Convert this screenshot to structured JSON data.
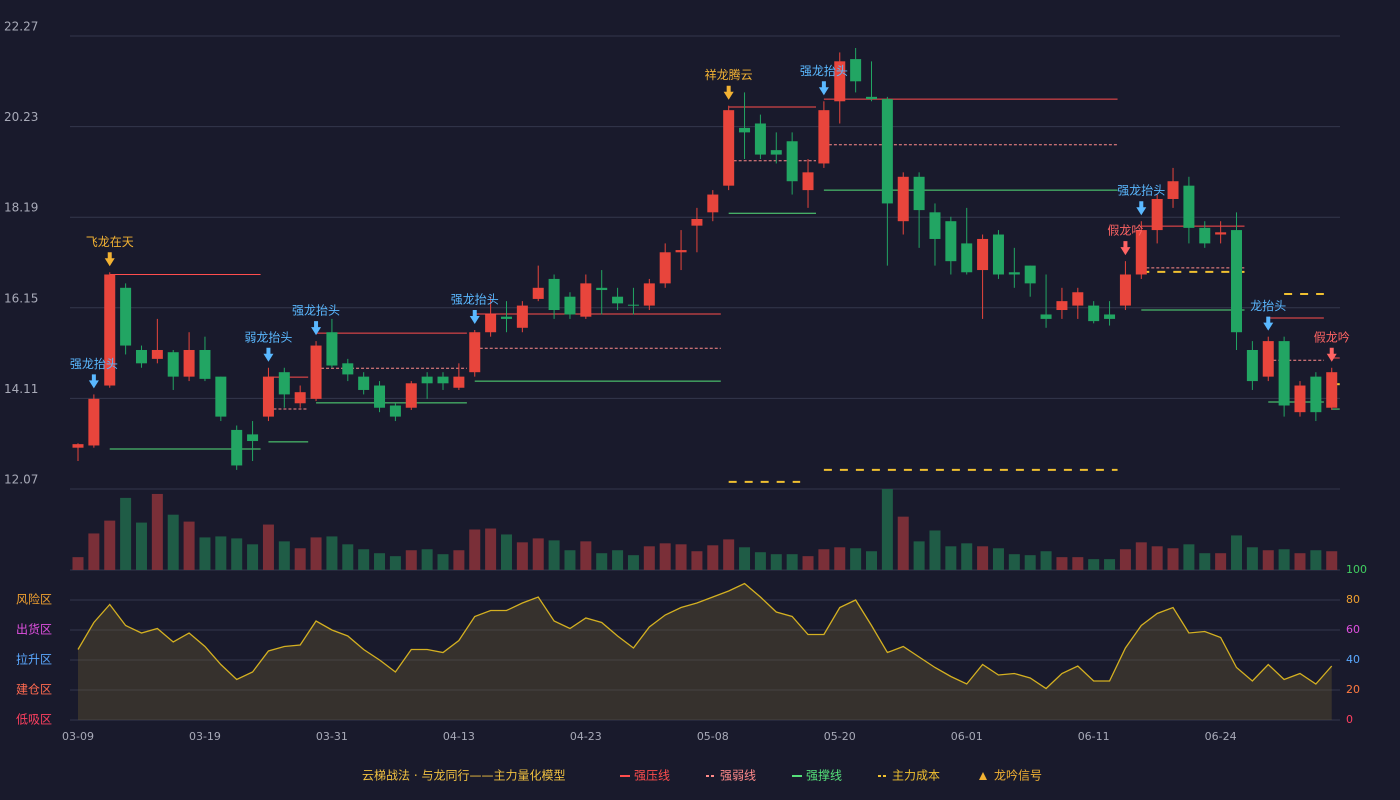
{
  "chart_data": {
    "type": "candlestick",
    "up_color": "#e8453c",
    "down_color": "#22a563",
    "ylim": [
      12.07,
      22.27
    ],
    "yticks": [
      12.07,
      14.11,
      16.15,
      18.19,
      20.23,
      22.27
    ],
    "grid": true,
    "categories": [
      "03-09",
      null,
      null,
      null,
      null,
      null,
      null,
      null,
      "03-19",
      null,
      null,
      null,
      null,
      null,
      null,
      null,
      "03-31",
      null,
      null,
      null,
      null,
      null,
      null,
      null,
      "04-13",
      null,
      null,
      null,
      null,
      null,
      null,
      null,
      "04-23",
      null,
      null,
      null,
      null,
      null,
      null,
      null,
      "05-08",
      null,
      null,
      null,
      null,
      null,
      null,
      null,
      "05-20",
      null,
      null,
      null,
      null,
      null,
      null,
      null,
      "06-01",
      null,
      null,
      null,
      null,
      null,
      null,
      null,
      "06-11",
      null,
      null,
      null,
      null,
      null,
      null,
      null,
      "06-24",
      null,
      null,
      null,
      null,
      null,
      null,
      null
    ],
    "ohlc": [
      [
        13.0,
        13.1,
        12.7,
        13.08
      ],
      [
        13.05,
        14.2,
        13.0,
        14.1
      ],
      [
        14.4,
        16.95,
        14.35,
        16.9
      ],
      [
        16.6,
        16.7,
        15.1,
        15.3
      ],
      [
        15.2,
        15.3,
        14.8,
        14.9
      ],
      [
        15.0,
        15.9,
        14.9,
        15.2
      ],
      [
        15.15,
        15.2,
        14.3,
        14.6
      ],
      [
        14.6,
        15.6,
        14.5,
        15.2
      ],
      [
        15.2,
        15.5,
        14.5,
        14.55
      ],
      [
        14.6,
        14.6,
        13.6,
        13.7
      ],
      [
        13.4,
        13.5,
        12.5,
        12.6
      ],
      [
        13.3,
        13.6,
        12.7,
        13.15
      ],
      [
        13.7,
        14.8,
        13.6,
        14.6
      ],
      [
        14.7,
        14.8,
        13.9,
        14.2
      ],
      [
        14.0,
        14.4,
        13.9,
        14.25
      ],
      [
        14.1,
        15.4,
        14.05,
        15.3
      ],
      [
        15.6,
        15.9,
        14.8,
        14.85
      ],
      [
        14.9,
        15.0,
        14.5,
        14.65
      ],
      [
        14.6,
        14.7,
        14.2,
        14.3
      ],
      [
        14.4,
        14.5,
        13.8,
        13.9
      ],
      [
        13.95,
        14.0,
        13.6,
        13.7
      ],
      [
        13.9,
        14.5,
        13.85,
        14.45
      ],
      [
        14.6,
        14.7,
        14.1,
        14.45
      ],
      [
        14.6,
        14.7,
        14.3,
        14.45
      ],
      [
        14.35,
        14.9,
        14.3,
        14.6
      ],
      [
        14.7,
        15.65,
        14.6,
        15.6
      ],
      [
        15.6,
        16.4,
        15.5,
        16.0
      ],
      [
        15.95,
        16.3,
        15.6,
        15.9
      ],
      [
        15.7,
        16.3,
        15.6,
        16.2
      ],
      [
        16.35,
        17.1,
        16.3,
        16.6
      ],
      [
        16.8,
        16.9,
        15.9,
        16.1
      ],
      [
        16.4,
        16.5,
        15.9,
        16.0
      ],
      [
        15.95,
        16.9,
        15.9,
        16.7
      ],
      [
        16.6,
        17.0,
        16.0,
        16.55
      ],
      [
        16.4,
        16.6,
        16.1,
        16.25
      ],
      [
        16.22,
        16.6,
        16.0,
        16.2
      ],
      [
        16.2,
        16.8,
        16.1,
        16.7
      ],
      [
        16.7,
        17.6,
        16.6,
        17.4
      ],
      [
        17.4,
        17.9,
        17.0,
        17.45
      ],
      [
        18.0,
        18.4,
        17.4,
        18.15
      ],
      [
        18.3,
        18.8,
        18.1,
        18.7
      ],
      [
        18.9,
        20.7,
        18.8,
        20.6
      ],
      [
        20.2,
        21.0,
        19.5,
        20.1
      ],
      [
        20.3,
        20.5,
        19.5,
        19.6
      ],
      [
        19.7,
        20.1,
        19.4,
        19.6
      ],
      [
        19.9,
        20.1,
        18.7,
        19.0
      ],
      [
        18.8,
        19.5,
        18.4,
        19.2
      ],
      [
        19.4,
        20.8,
        19.3,
        20.6
      ],
      [
        20.8,
        21.9,
        20.3,
        21.7
      ],
      [
        21.75,
        22.0,
        21.0,
        21.25
      ],
      [
        20.9,
        21.7,
        20.8,
        20.85
      ],
      [
        20.85,
        20.9,
        17.1,
        18.5
      ],
      [
        18.1,
        19.2,
        17.8,
        19.1
      ],
      [
        19.1,
        19.2,
        17.5,
        18.35
      ],
      [
        18.3,
        18.5,
        17.1,
        17.7
      ],
      [
        18.1,
        18.2,
        16.9,
        17.2
      ],
      [
        17.6,
        18.4,
        16.9,
        16.95
      ],
      [
        17.0,
        17.8,
        15.9,
        17.7
      ],
      [
        17.8,
        17.9,
        16.8,
        16.9
      ],
      [
        16.95,
        17.5,
        16.6,
        16.9
      ],
      [
        17.1,
        17.1,
        16.4,
        16.7
      ],
      [
        16.0,
        16.9,
        15.7,
        15.9
      ],
      [
        16.1,
        16.6,
        15.9,
        16.3
      ],
      [
        16.2,
        16.6,
        15.9,
        16.5
      ],
      [
        16.2,
        16.3,
        15.8,
        15.85
      ],
      [
        16.0,
        16.3,
        15.75,
        15.9
      ],
      [
        16.2,
        17.2,
        16.1,
        16.9
      ],
      [
        16.9,
        18.1,
        16.8,
        17.9
      ],
      [
        17.9,
        18.7,
        17.6,
        18.6
      ],
      [
        18.6,
        19.3,
        18.4,
        19.0
      ],
      [
        18.9,
        19.1,
        17.6,
        17.95
      ],
      [
        17.95,
        18.1,
        17.5,
        17.6
      ],
      [
        17.8,
        18.1,
        17.6,
        17.85
      ],
      [
        17.9,
        18.3,
        15.2,
        15.6
      ],
      [
        15.2,
        15.4,
        14.3,
        14.5
      ],
      [
        14.6,
        15.5,
        14.5,
        15.4
      ],
      [
        15.4,
        15.5,
        13.7,
        13.95
      ],
      [
        13.8,
        14.5,
        13.7,
        14.4
      ],
      [
        14.6,
        14.7,
        13.6,
        13.8
      ],
      [
        13.9,
        14.8,
        13.85,
        14.7
      ]
    ],
    "signals": [
      null,
      {
        "label": "强龙抬头",
        "color": "#5ab8ff"
      },
      {
        "label": "飞龙在天",
        "color": "#f2b233"
      },
      null,
      null,
      null,
      null,
      null,
      null,
      null,
      null,
      null,
      {
        "label": "弱龙抬头",
        "color": "#5ab8ff"
      },
      null,
      null,
      {
        "label": "强龙抬头",
        "color": "#5ab8ff"
      },
      null,
      null,
      null,
      null,
      null,
      null,
      null,
      null,
      null,
      {
        "label": "强龙抬头",
        "color": "#5ab8ff"
      },
      null,
      null,
      null,
      null,
      null,
      null,
      null,
      null,
      null,
      null,
      null,
      null,
      null,
      null,
      null,
      {
        "label": "祥龙腾云",
        "color": "#f2b233"
      },
      null,
      null,
      null,
      null,
      null,
      {
        "label": "强龙抬头",
        "color": "#5ab8ff"
      },
      null,
      null,
      null,
      null,
      null,
      null,
      null,
      null,
      null,
      null,
      null,
      null,
      null,
      null,
      null,
      null,
      null,
      null,
      {
        "label": "假龙吟",
        "color": "#ff6464"
      },
      {
        "label": "强龙抬头",
        "color": "#5ab8ff"
      },
      null,
      null,
      null,
      null,
      null,
      null,
      null,
      {
        "label": "龙抬头",
        "color": "#5ab8ff"
      },
      null,
      null,
      null,
      {
        "label": "假龙吟",
        "color": "#ff6464"
      }
    ],
    "levels": [
      {
        "name": "强压线",
        "color": "#ff4d4d",
        "dash": "none",
        "segments": [
          [
            2,
            11,
            16.9
          ],
          [
            12,
            14,
            14.59
          ],
          [
            15,
            24,
            15.58
          ],
          [
            25,
            40,
            16.01
          ],
          [
            41,
            46,
            20.67
          ],
          [
            47,
            65,
            20.85
          ],
          [
            67,
            73,
            17.99
          ],
          [
            75,
            78,
            15.92
          ],
          [
            79,
            79,
            15.02
          ]
        ]
      },
      {
        "name": "强弱线",
        "color": "#ff8a8a",
        "dash": "3,2",
        "segments": [
          [
            12,
            14,
            13.87
          ],
          [
            15,
            24,
            14.79
          ],
          [
            25,
            40,
            15.24
          ],
          [
            41,
            46,
            19.46
          ],
          [
            47,
            65,
            19.82
          ],
          [
            67,
            73,
            17.05
          ],
          [
            75,
            78,
            14.97
          ]
        ]
      },
      {
        "name": "强撑线",
        "color": "#55e07a",
        "dash": "none",
        "segments": [
          [
            2,
            11,
            12.97
          ],
          [
            12,
            14,
            13.13
          ],
          [
            15,
            24,
            14.01
          ],
          [
            25,
            40,
            14.5
          ],
          [
            41,
            46,
            18.28
          ],
          [
            47,
            65,
            18.8
          ],
          [
            67,
            73,
            16.1
          ],
          [
            75,
            78,
            14.03
          ],
          [
            79,
            79,
            13.87
          ]
        ]
      },
      {
        "name": "主力成本",
        "color": "#f0c030",
        "dash": "8,8",
        "segments": [
          [
            41,
            45,
            12.23
          ],
          [
            47,
            65,
            12.5
          ],
          [
            67,
            73,
            16.96
          ],
          [
            76,
            78,
            16.46
          ],
          [
            79,
            79,
            14.43
          ]
        ]
      }
    ],
    "signal_legend": {
      "name": "龙吟信号",
      "color": "#f2b233"
    },
    "model_title": "云梯战法 · 与龙同行——主力量化模型",
    "volume": {
      "type": "bar",
      "up_color": "#7a2f38",
      "down_color": "#1f5c46",
      "ylim": [
        0,
        82
      ],
      "values": [
        13,
        37,
        50,
        73,
        48,
        77,
        56,
        49,
        33,
        34,
        32,
        26,
        46,
        29,
        22,
        33,
        34,
        26,
        21,
        17,
        14,
        20,
        21,
        16,
        20,
        41,
        42,
        36,
        28,
        32,
        30,
        20,
        29,
        17,
        20,
        15,
        24,
        27,
        26,
        19,
        25,
        31,
        23,
        18,
        16,
        16,
        14,
        21,
        23,
        22,
        19,
        82,
        54,
        29,
        40,
        24,
        27,
        24,
        22,
        16,
        15,
        19,
        13,
        13,
        11,
        11,
        21,
        28,
        24,
        22,
        26,
        17,
        17,
        35,
        23,
        20,
        21,
        17,
        20,
        19
      ]
    },
    "indicator": {
      "type": "area",
      "color": "#d4b021",
      "fill": "rgba(110,95,50,0.35)",
      "ylim": [
        0,
        100
      ],
      "yticks": [
        0,
        20,
        40,
        60,
        80,
        100
      ],
      "ytick_colors": [
        "#ff4060",
        "#ff7a40",
        "#5aa8ff",
        "#e050e0",
        "#f0a030",
        "#40d060"
      ],
      "zones": [
        {
          "label": "风险区",
          "value": 80,
          "color": "#f0a030"
        },
        {
          "label": "出货区",
          "value": 60,
          "color": "#e050e0"
        },
        {
          "label": "拉升区",
          "value": 40,
          "color": "#5aa8ff"
        },
        {
          "label": "建仓区",
          "value": 20,
          "color": "#ff6a50"
        },
        {
          "label": "低吸区",
          "value": 0,
          "color": "#ff4060"
        }
      ],
      "values": [
        47,
        65,
        77,
        63,
        58,
        61,
        52,
        58,
        49,
        37,
        27,
        32,
        46,
        49,
        50,
        66,
        60,
        56,
        47,
        40,
        32,
        47,
        47,
        45,
        53,
        69,
        73,
        73,
        78,
        82,
        66,
        61,
        68,
        65,
        56,
        48,
        62,
        70,
        75,
        78,
        82,
        86,
        91,
        82,
        72,
        69,
        57,
        57,
        75,
        80,
        63,
        45,
        49,
        42,
        35,
        29,
        24,
        37,
        30,
        31,
        28,
        21,
        31,
        36,
        26,
        26,
        48,
        63,
        71,
        75,
        58,
        59,
        55,
        35,
        26,
        37,
        27,
        31,
        24,
        36
      ]
    }
  }
}
